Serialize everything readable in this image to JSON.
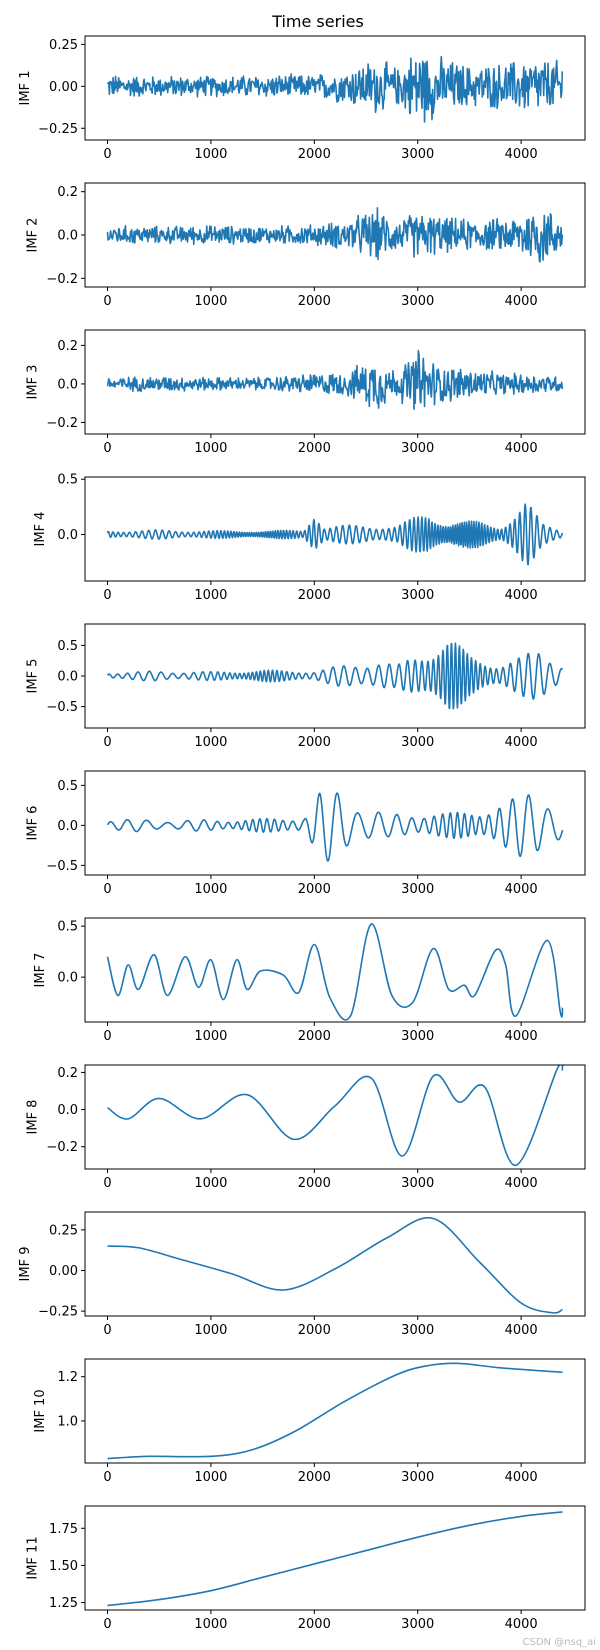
{
  "chart_data": {
    "type": "line",
    "title": "Time series",
    "xlabel": "",
    "x_range": [
      0,
      4400
    ],
    "x_ticks": [
      0,
      1000,
      2000,
      3000,
      4000
    ],
    "x_tick_labels": [
      "0",
      "1000",
      "2000",
      "3000",
      "4000"
    ],
    "panels": [
      {
        "ylabel": "IMF 1",
        "ylim": [
          -0.32,
          0.3
        ],
        "yticks": [
          -0.25,
          0.0,
          0.25
        ],
        "ytick_labels": [
          "−0.25",
          "0.00",
          "0.25"
        ],
        "kind": "noise",
        "base_amp": 0.07,
        "env": [
          [
            0,
            1
          ],
          [
            500,
            0.9
          ],
          [
            1000,
            0.9
          ],
          [
            1500,
            1.0
          ],
          [
            2000,
            1.0
          ],
          [
            2300,
            1.5
          ],
          [
            2600,
            2.5
          ],
          [
            2800,
            1.6
          ],
          [
            3000,
            3.5
          ],
          [
            3200,
            2.6
          ],
          [
            3500,
            1.8
          ],
          [
            3800,
            2.0
          ],
          [
            4100,
            2.5
          ],
          [
            4400,
            2.2
          ]
        ]
      },
      {
        "ylabel": "IMF 2",
        "ylim": [
          -0.24,
          0.24
        ],
        "yticks": [
          -0.2,
          0.0,
          0.2
        ],
        "ytick_labels": [
          "−0.2",
          "0.0",
          "0.2"
        ],
        "kind": "noise",
        "base_amp": 0.045,
        "env": [
          [
            0,
            1
          ],
          [
            500,
            0.9
          ],
          [
            1000,
            1.0
          ],
          [
            1500,
            0.9
          ],
          [
            2000,
            1.1
          ],
          [
            2300,
            1.5
          ],
          [
            2600,
            2.8
          ],
          [
            2800,
            1.6
          ],
          [
            3000,
            2.5
          ],
          [
            3300,
            1.8
          ],
          [
            3600,
            1.6
          ],
          [
            3900,
            1.8
          ],
          [
            4200,
            3.5
          ],
          [
            4400,
            1.4
          ]
        ]
      },
      {
        "ylabel": "IMF 3",
        "ylim": [
          -0.26,
          0.28
        ],
        "yticks": [
          -0.2,
          0.0,
          0.2
        ],
        "ytick_labels": [
          "−0.2",
          "0.0",
          "0.2"
        ],
        "kind": "noise",
        "base_amp": 0.035,
        "env": [
          [
            0,
            1
          ],
          [
            500,
            1.2
          ],
          [
            1000,
            1.0
          ],
          [
            1500,
            1.0
          ],
          [
            2000,
            1.6
          ],
          [
            2300,
            1.8
          ],
          [
            2600,
            4.2
          ],
          [
            2800,
            2.0
          ],
          [
            3000,
            5.5
          ],
          [
            3200,
            3.0
          ],
          [
            3500,
            2.4
          ],
          [
            3800,
            1.6
          ],
          [
            4100,
            1.6
          ],
          [
            4400,
            1.2
          ]
        ]
      },
      {
        "ylabel": "IMF 4",
        "ylim": [
          -0.42,
          0.52
        ],
        "yticks": [
          0.0,
          0.5
        ],
        "ytick_labels": [
          "0.0",
          "0.5"
        ],
        "kind": "osc",
        "period": 55,
        "amp": 0.035,
        "env": [
          [
            0,
            1
          ],
          [
            500,
            1.2
          ],
          [
            1000,
            1.0
          ],
          [
            1500,
            1.0
          ],
          [
            1900,
            1.2
          ],
          [
            2000,
            8.0
          ],
          [
            2100,
            2.0
          ],
          [
            2500,
            2.8
          ],
          [
            2800,
            2.2
          ],
          [
            3100,
            6.5
          ],
          [
            3300,
            3.5
          ],
          [
            3600,
            3.5
          ],
          [
            3800,
            2.5
          ],
          [
            4050,
            9.0
          ],
          [
            4200,
            3.0
          ],
          [
            4400,
            1.4
          ]
        ]
      },
      {
        "ylabel": "IMF 5",
        "ylim": [
          -0.85,
          0.85
        ],
        "yticks": [
          -0.5,
          0.0,
          0.5
        ],
        "ytick_labels": [
          "−0.5",
          "0.0",
          "0.5"
        ],
        "kind": "osc",
        "period": 95,
        "amp": 0.07,
        "env": [
          [
            0,
            0.8
          ],
          [
            500,
            1.2
          ],
          [
            1000,
            1.0
          ],
          [
            1500,
            1.4
          ],
          [
            2000,
            1.2
          ],
          [
            2200,
            2.2
          ],
          [
            2600,
            4.0
          ],
          [
            2800,
            2.5
          ],
          [
            3000,
            5.5
          ],
          [
            3300,
            9.5
          ],
          [
            3500,
            5.0
          ],
          [
            3800,
            3.0
          ],
          [
            4000,
            4.5
          ],
          [
            4200,
            7.0
          ],
          [
            4400,
            3.0
          ]
        ]
      },
      {
        "ylabel": "IMF 6",
        "ylim": [
          -0.62,
          0.68
        ],
        "yticks": [
          -0.5,
          0.0,
          0.5
        ],
        "ytick_labels": [
          "−0.5",
          "0.0",
          "0.5"
        ],
        "kind": "osc",
        "period": 170,
        "amp": 0.07,
        "env": [
          [
            0,
            1.2
          ],
          [
            500,
            1.0
          ],
          [
            1000,
            1.0
          ],
          [
            1500,
            1.2
          ],
          [
            1900,
            1.6
          ],
          [
            2050,
            6.0
          ],
          [
            2250,
            7.0
          ],
          [
            2450,
            4.0
          ],
          [
            2700,
            2.0
          ],
          [
            3000,
            2.4
          ],
          [
            3300,
            2.2
          ],
          [
            3600,
            3.0
          ],
          [
            3900,
            4.5
          ],
          [
            4150,
            8.0
          ],
          [
            4300,
            5.0
          ],
          [
            4400,
            3.0
          ]
        ]
      },
      {
        "ylabel": "IMF 7",
        "ylim": [
          -0.44,
          0.58
        ],
        "yticks": [
          0.0,
          0.5
        ],
        "ytick_labels": [
          "0.0",
          "0.5"
        ],
        "kind": "points",
        "points": [
          [
            0,
            0.2
          ],
          [
            100,
            -0.18
          ],
          [
            200,
            0.12
          ],
          [
            300,
            -0.12
          ],
          [
            450,
            0.22
          ],
          [
            580,
            -0.18
          ],
          [
            750,
            0.2
          ],
          [
            880,
            -0.1
          ],
          [
            1000,
            0.17
          ],
          [
            1120,
            -0.22
          ],
          [
            1250,
            0.17
          ],
          [
            1350,
            -0.12
          ],
          [
            1480,
            0.06
          ],
          [
            1700,
            0.02
          ],
          [
            1850,
            -0.15
          ],
          [
            2000,
            0.32
          ],
          [
            2150,
            -0.2
          ],
          [
            2350,
            -0.38
          ],
          [
            2550,
            0.52
          ],
          [
            2750,
            -0.18
          ],
          [
            2950,
            -0.25
          ],
          [
            3150,
            0.28
          ],
          [
            3300,
            -0.12
          ],
          [
            3450,
            -0.08
          ],
          [
            3550,
            -0.18
          ],
          [
            3750,
            0.26
          ],
          [
            3850,
            0.12
          ],
          [
            3950,
            -0.38
          ],
          [
            4250,
            0.36
          ],
          [
            4380,
            -0.35
          ],
          [
            4400,
            -0.3
          ]
        ]
      },
      {
        "ylabel": "IMF 8",
        "ylim": [
          -0.32,
          0.24
        ],
        "yticks": [
          -0.2,
          0.0,
          0.2
        ],
        "ytick_labels": [
          "−0.2",
          "0.0",
          "0.2"
        ],
        "kind": "points",
        "points": [
          [
            0,
            0.01
          ],
          [
            200,
            -0.05
          ],
          [
            500,
            0.06
          ],
          [
            900,
            -0.05
          ],
          [
            1350,
            0.08
          ],
          [
            1800,
            -0.16
          ],
          [
            2200,
            0.02
          ],
          [
            2550,
            0.17
          ],
          [
            2850,
            -0.25
          ],
          [
            3150,
            0.18
          ],
          [
            3400,
            0.04
          ],
          [
            3650,
            0.12
          ],
          [
            3950,
            -0.3
          ],
          [
            4350,
            0.22
          ],
          [
            4400,
            0.21
          ]
        ]
      },
      {
        "ylabel": "IMF 9",
        "ylim": [
          -0.28,
          0.36
        ],
        "yticks": [
          -0.25,
          0.0,
          0.25
        ],
        "ytick_labels": [
          "−0.25",
          "0.00",
          "0.25"
        ],
        "kind": "points",
        "points": [
          [
            0,
            0.15
          ],
          [
            300,
            0.14
          ],
          [
            700,
            0.07
          ],
          [
            1200,
            -0.02
          ],
          [
            1700,
            -0.12
          ],
          [
            2200,
            0.01
          ],
          [
            2700,
            0.2
          ],
          [
            3150,
            0.32
          ],
          [
            3600,
            0.05
          ],
          [
            4000,
            -0.2
          ],
          [
            4300,
            -0.26
          ],
          [
            4400,
            -0.24
          ]
        ]
      },
      {
        "ylabel": "IMF 10",
        "ylim": [
          0.81,
          1.28
        ],
        "yticks": [
          1.0,
          1.2
        ],
        "ytick_labels": [
          "1.0",
          "1.2"
        ],
        "kind": "points",
        "points": [
          [
            0,
            0.83
          ],
          [
            400,
            0.84
          ],
          [
            1000,
            0.84
          ],
          [
            1400,
            0.87
          ],
          [
            1800,
            0.95
          ],
          [
            2300,
            1.09
          ],
          [
            2800,
            1.21
          ],
          [
            3100,
            1.25
          ],
          [
            3400,
            1.26
          ],
          [
            3800,
            1.24
          ],
          [
            4400,
            1.22
          ]
        ]
      },
      {
        "ylabel": "IMF 11",
        "ylim": [
          1.2,
          1.9
        ],
        "yticks": [
          1.25,
          1.5,
          1.75
        ],
        "ytick_labels": [
          "1.25",
          "1.50",
          "1.75"
        ],
        "kind": "points",
        "points": [
          [
            0,
            1.23
          ],
          [
            500,
            1.27
          ],
          [
            1000,
            1.33
          ],
          [
            1500,
            1.42
          ],
          [
            2000,
            1.51
          ],
          [
            2500,
            1.6
          ],
          [
            3000,
            1.69
          ],
          [
            3500,
            1.77
          ],
          [
            4000,
            1.83
          ],
          [
            4400,
            1.86
          ]
        ]
      }
    ]
  },
  "watermark": "CSDN @nsq_ai"
}
